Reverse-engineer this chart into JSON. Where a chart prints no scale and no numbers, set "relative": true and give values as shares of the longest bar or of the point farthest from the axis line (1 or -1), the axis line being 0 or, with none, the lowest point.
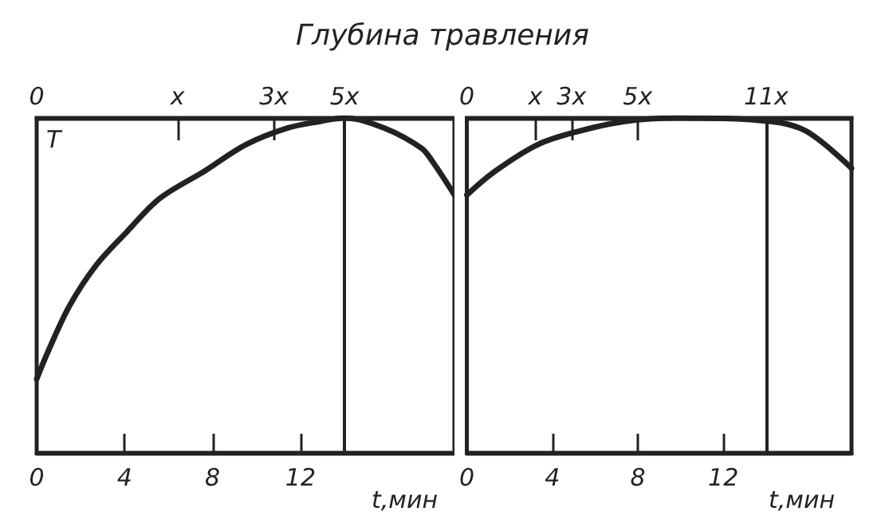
{
  "chart_data": [
    {
      "type": "line",
      "x2label": "Глубина травления",
      "ylabel": "T",
      "xlabel": "t,мин",
      "relative": true,
      "xlim": [
        0,
        19
      ],
      "xticks": [
        0,
        4,
        8,
        12
      ],
      "ref_lines": [
        {
          "axis": "x",
          "value": 14
        }
      ],
      "grid": false,
      "marker": "none",
      "line_style": "solid",
      "annotations": [
        "0",
        "x",
        "3x",
        "5x"
      ],
      "series": [
        {
          "color": "#222222",
          "x": [
            0,
            0.5,
            1.5,
            2.7,
            4.1,
            5.6,
            7.6,
            9.5,
            11.4,
            12.9,
            14.0,
            15.8,
            17.5,
            18.0,
            19.0
          ],
          "values": [
            0.22,
            0.3,
            0.44,
            0.56,
            0.66,
            0.76,
            0.84,
            0.92,
            0.97,
            0.99,
            1.0,
            0.97,
            0.91,
            0.87,
            0.77
          ]
        }
      ]
    },
    {
      "type": "line",
      "xlabel": "t,мин",
      "relative": true,
      "xlim": [
        0,
        18
      ],
      "xticks": [
        0,
        4,
        8,
        12
      ],
      "ref_lines": [
        {
          "axis": "x",
          "value": 14
        }
      ],
      "grid": false,
      "marker": "none",
      "line_style": "solid",
      "annotations": [
        "0",
        "x",
        "3x",
        "5x",
        "11x"
      ],
      "series": [
        {
          "color": "#222222",
          "x": [
            0,
            1.3,
            3.3,
            5.2,
            7.4,
            9.8,
            14.2,
            15.9,
            18.0
          ],
          "values": [
            0.77,
            0.84,
            0.92,
            0.96,
            0.99,
            1.0,
            0.99,
            0.96,
            0.85
          ]
        }
      ]
    }
  ]
}
